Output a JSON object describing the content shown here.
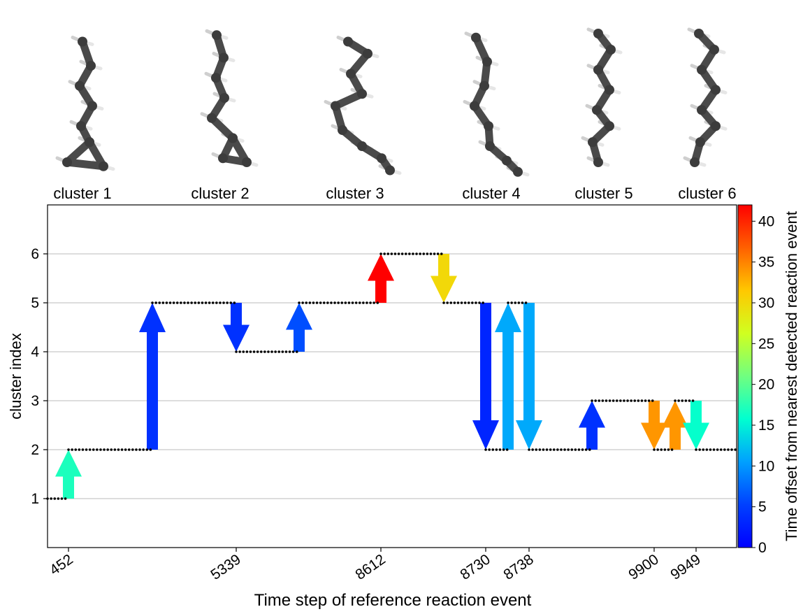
{
  "chart_data": {
    "type": "arrow-step",
    "xlabel": "Time step of reference reaction event",
    "ylabel": "cluster index",
    "colorbar_label": "Time offset from nearest detected reaction event",
    "colorbar_ticks": [
      "0",
      "5",
      "10",
      "15",
      "20",
      "25",
      "30",
      "35",
      "40"
    ],
    "colorbar_range": [
      0,
      42
    ],
    "colormap": "jet",
    "xtick_labels": [
      "452",
      "5339",
      "8612",
      "8730",
      "8738",
      "9900",
      "9949"
    ],
    "yticks": [
      1,
      2,
      3,
      4,
      5,
      6
    ],
    "ylim": [
      0,
      7
    ],
    "grid": "horizontal",
    "clusters": [
      {
        "label": "cluster 1",
        "image": "molecule-structure-cluster-1"
      },
      {
        "label": "cluster 2",
        "image": "molecule-structure-cluster-2"
      },
      {
        "label": "cluster 3",
        "image": "molecule-structure-cluster-3"
      },
      {
        "label": "cluster 4",
        "image": "molecule-structure-cluster-4"
      },
      {
        "label": "cluster 5",
        "image": "molecule-structure-cluster-5"
      },
      {
        "label": "cluster 6",
        "image": "molecule-structure-cluster-6"
      }
    ],
    "levels": [
      {
        "y": 1,
        "segment": 0
      },
      {
        "y": 2,
        "segment": 1
      },
      {
        "y": 5,
        "segment": 2
      },
      {
        "y": 4,
        "segment": 3
      },
      {
        "y": 5,
        "segment": 4
      },
      {
        "y": 6,
        "segment": 5
      },
      {
        "y": 5,
        "segment": 6
      },
      {
        "y": 2,
        "segment": 7
      },
      {
        "y": 5,
        "segment": 8
      },
      {
        "y": 2,
        "segment": 9
      },
      {
        "y": 3,
        "segment": 10
      },
      {
        "y": 2,
        "segment": 11
      },
      {
        "y": 3,
        "segment": 12
      },
      {
        "y": 2,
        "segment": 13
      }
    ],
    "transitions": [
      {
        "from": 1,
        "to": 2,
        "offset": 17
      },
      {
        "from": 2,
        "to": 5,
        "offset": 4
      },
      {
        "from": 5,
        "to": 4,
        "offset": 4
      },
      {
        "from": 4,
        "to": 5,
        "offset": 6
      },
      {
        "from": 5,
        "to": 6,
        "offset": 42
      },
      {
        "from": 6,
        "to": 5,
        "offset": 30
      },
      {
        "from": 5,
        "to": 2,
        "offset": 3
      },
      {
        "from": 2,
        "to": 5,
        "offset": 11
      },
      {
        "from": 5,
        "to": 2,
        "offset": 11
      },
      {
        "from": 2,
        "to": 3,
        "offset": 4
      },
      {
        "from": 3,
        "to": 2,
        "offset": 34
      },
      {
        "from": 2,
        "to": 3,
        "offset": 34
      },
      {
        "from": 3,
        "to": 2,
        "offset": 16
      }
    ]
  }
}
